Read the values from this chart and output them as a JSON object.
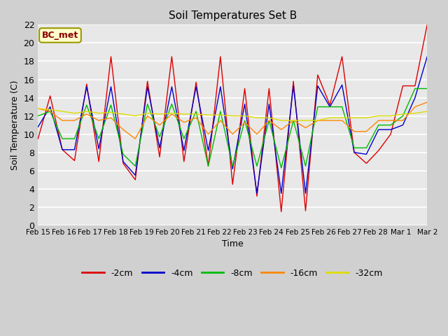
{
  "title": "Soil Temperatures Set B",
  "xlabel": "Time",
  "ylabel": "Soil Temperature (C)",
  "ylim": [
    0,
    22
  ],
  "yticks": [
    0,
    2,
    4,
    6,
    8,
    10,
    12,
    14,
    16,
    18,
    20,
    22
  ],
  "annotation": "BC_met",
  "fig_bg_color": "#d0d0d0",
  "plot_bg_color": "#e8e8e8",
  "grid_color": "#ffffff",
  "line_colors": {
    "-2cm": "#dd0000",
    "-4cm": "#0000cc",
    "-8cm": "#00bb00",
    "-16cm": "#ff8800",
    "-32cm": "#dddd00"
  },
  "x_labels": [
    "Feb 15",
    "Feb 16",
    "Feb 17",
    "Feb 18",
    "Feb 19",
    "Feb 20",
    "Feb 21",
    "Feb 22",
    "Feb 23",
    "Feb 24",
    "Feb 25",
    "Feb 26",
    "Feb 27",
    "Feb 28",
    "Mar 1",
    "Mar 2"
  ],
  "series": {
    "-2cm": [
      9.5,
      14.2,
      8.3,
      7.1,
      15.5,
      7.0,
      18.5,
      6.8,
      5.0,
      15.8,
      7.5,
      18.5,
      7.0,
      15.7,
      6.5,
      18.5,
      4.5,
      15.0,
      3.2,
      15.0,
      1.5,
      15.8,
      1.6,
      16.5,
      13.2,
      18.5,
      8.0,
      6.8,
      8.2,
      10.0,
      15.3,
      15.3,
      22.0
    ],
    "-4cm": [
      10.8,
      13.0,
      8.3,
      8.3,
      15.2,
      8.4,
      15.2,
      7.0,
      5.5,
      15.2,
      8.5,
      15.2,
      8.2,
      15.2,
      8.2,
      15.2,
      6.2,
      13.3,
      3.5,
      13.3,
      3.5,
      15.3,
      3.5,
      15.3,
      13.0,
      15.4,
      8.0,
      7.8,
      10.5,
      10.5,
      11.0,
      14.0,
      18.5
    ],
    "-8cm": [
      12.0,
      12.5,
      9.5,
      9.5,
      13.2,
      9.5,
      13.2,
      7.8,
      6.5,
      13.3,
      9.7,
      13.3,
      9.5,
      12.5,
      6.5,
      12.5,
      6.5,
      11.5,
      6.5,
      11.5,
      6.3,
      11.5,
      6.5,
      13.0,
      13.0,
      13.0,
      8.5,
      8.5,
      11.0,
      11.0,
      12.0,
      15.0,
      15.0
    ],
    "-16cm": [
      12.8,
      12.5,
      11.5,
      11.5,
      12.2,
      11.5,
      11.8,
      10.5,
      9.5,
      12.0,
      11.0,
      12.2,
      11.3,
      11.8,
      10.0,
      11.5,
      10.0,
      11.3,
      10.0,
      11.5,
      10.5,
      11.5,
      10.7,
      11.5,
      11.5,
      11.5,
      10.3,
      10.3,
      11.5,
      11.5,
      11.5,
      13.0,
      13.5
    ],
    "-32cm": [
      12.8,
      12.7,
      12.5,
      12.3,
      12.5,
      12.3,
      12.4,
      12.2,
      12.0,
      12.3,
      12.2,
      12.3,
      12.2,
      12.2,
      12.1,
      12.1,
      12.0,
      12.0,
      11.8,
      11.8,
      11.5,
      11.5,
      11.5,
      11.5,
      11.8,
      11.8,
      11.8,
      11.8,
      12.0,
      12.0,
      12.2,
      12.3,
      12.5
    ]
  }
}
